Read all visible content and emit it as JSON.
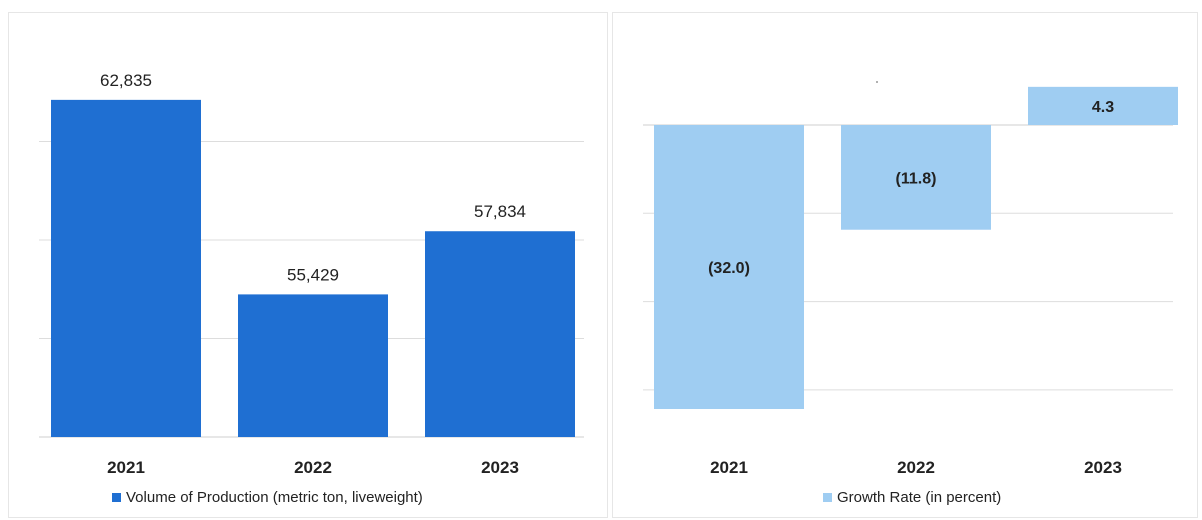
{
  "header": {
    "title_fragment": ""
  },
  "colors": {
    "volume_bar": "#1f6fd2",
    "growth_bar": "#9fcdf2",
    "gridline": "#dddddd",
    "text": "#222222"
  },
  "chart_data": [
    {
      "type": "bar",
      "categories": [
        "2021",
        "2022",
        "2023"
      ],
      "series": [
        {
          "name": "Volume of Production (metric ton, liveweight)",
          "values": [
            62835,
            55429,
            57834
          ]
        }
      ],
      "data_labels": [
        "62,835",
        "55,429",
        "57,834"
      ],
      "ylim": [
        50000,
        65000
      ],
      "grid": true,
      "legend": "bottom-center"
    },
    {
      "type": "bar",
      "categories": [
        "2021",
        "2022",
        "2023"
      ],
      "series": [
        {
          "name": "Growth Rate (in percent)",
          "values": [
            -32.0,
            -11.8,
            4.3
          ]
        }
      ],
      "data_labels": [
        "(32.0)",
        "(11.8)",
        "4.3"
      ],
      "ylim": [
        -36,
        8
      ],
      "grid": true,
      "legend": "bottom-center"
    }
  ]
}
